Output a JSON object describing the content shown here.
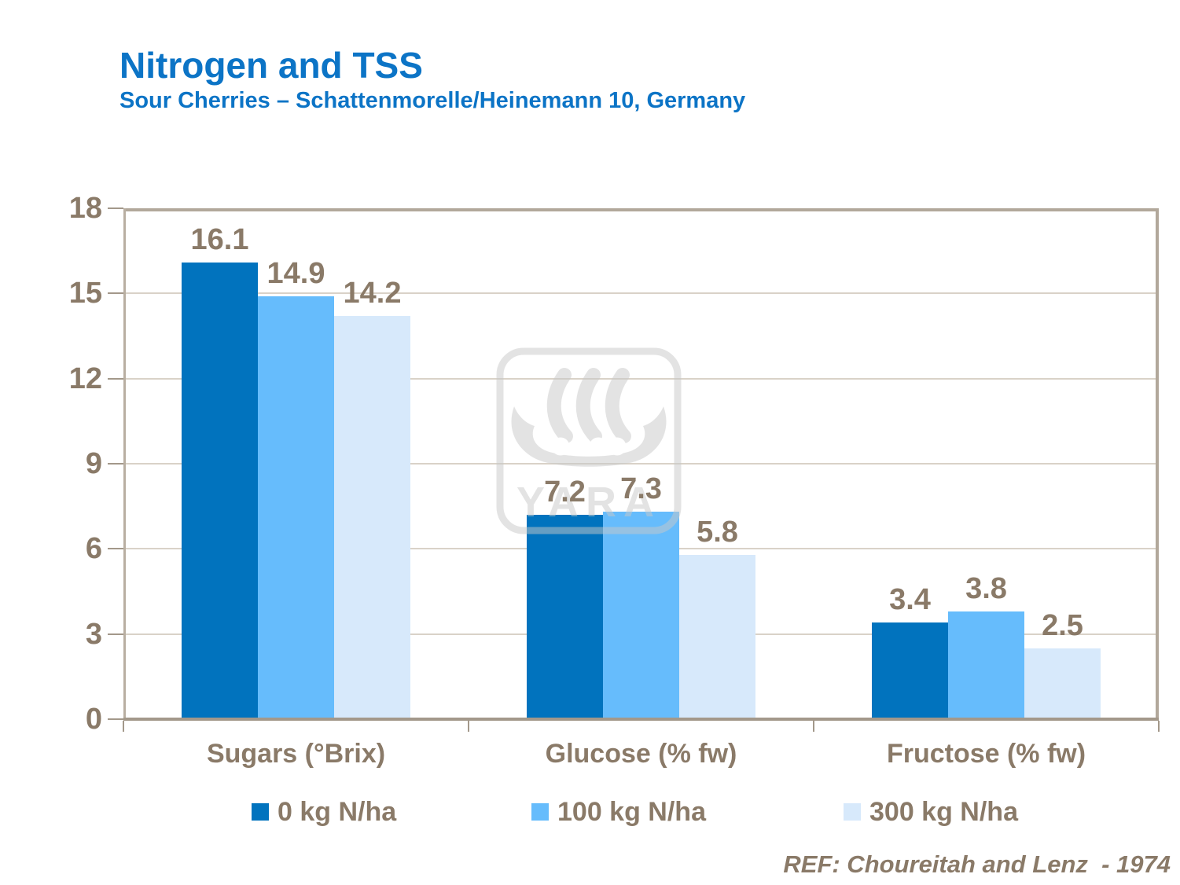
{
  "header": {
    "title": "Nitrogen and TSS",
    "subtitle": "Sour Cherries – Schattenmorelle/Heinemann 10, Germany"
  },
  "chart_data": {
    "type": "bar",
    "title": "Nitrogen and TSS",
    "subtitle": "Sour Cherries – Schattenmorelle/Heinemann 10, Germany",
    "categories": [
      "Sugars (°Brix)",
      "Glucose (% fw)",
      "Fructose (% fw)"
    ],
    "series": [
      {
        "name": "0 kg N/ha",
        "color": "#0173be",
        "values": [
          16.1,
          7.2,
          3.4
        ]
      },
      {
        "name": "100 kg N/ha",
        "color": "#66bcfc",
        "values": [
          14.9,
          7.3,
          3.8
        ]
      },
      {
        "name": "300 kg N/ha",
        "color": "#d7e9fb",
        "values": [
          14.2,
          5.8,
          2.5
        ]
      }
    ],
    "ylim": [
      0,
      18
    ],
    "yticks": [
      0,
      3,
      6,
      9,
      12,
      15,
      18
    ],
    "grid": true,
    "legend_position": "bottom",
    "value_labels": true,
    "value_label_decimals": 1
  },
  "watermark": {
    "logo": "yara-viking-ship-logo",
    "text": "YARA"
  },
  "footer": {
    "reference": "REF: Choureitah and Lenz  - 1974"
  },
  "colors": {
    "title_blue": "#0c74c6",
    "text_brown": "#8a7a68",
    "gridline": "#d9d2c8",
    "frame": "#b2a89b",
    "axis": "#a3988a",
    "watermark_gray": "#c9c9c9"
  }
}
